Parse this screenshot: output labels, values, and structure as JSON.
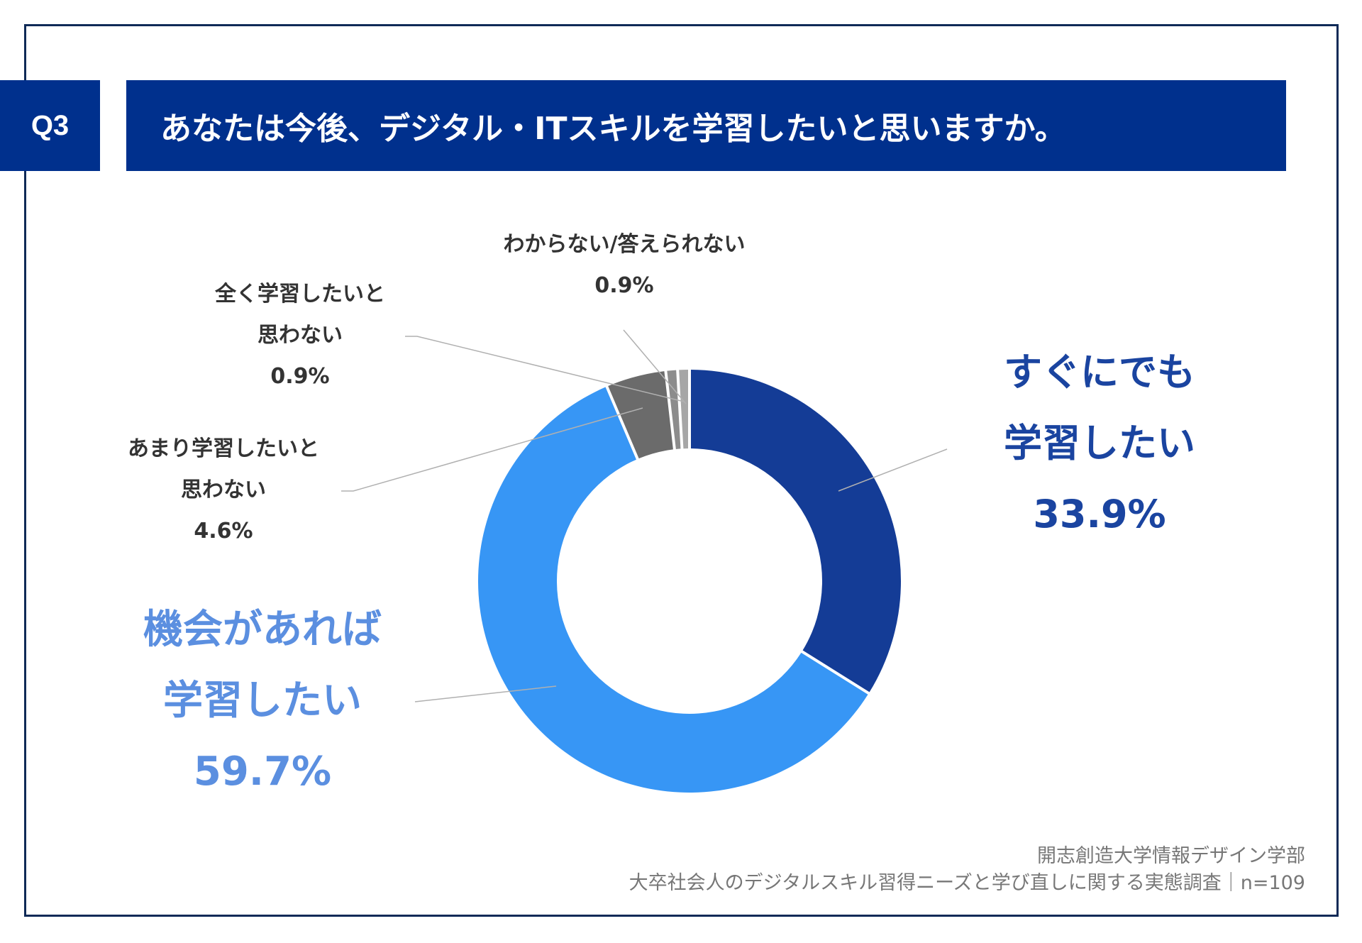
{
  "header": {
    "question_no": "Q3",
    "title": "あなたは今後、デジタル・ITスキルを学習したいと思いますか。"
  },
  "labels": {
    "soon": {
      "line1": "すぐにでも",
      "line2": "学習したい",
      "value": "33.9%"
    },
    "chance": {
      "line1": "機会があれば",
      "line2": "学習したい",
      "value": "59.7%"
    },
    "not_much": {
      "line1": "あまり学習したいと",
      "line2": "思わない",
      "value": "4.6%"
    },
    "not_at_all": {
      "line1": "全く学習したいと",
      "line2": "思わない",
      "value": "0.9%"
    },
    "unknown": {
      "line1": "わからない/答えられない",
      "value": "0.9%"
    }
  },
  "footer": {
    "line1": "開志創造大学情報デザイン学部",
    "line2": "大卒社会人のデジタルスキル習得ニーズと学び直しに関する実態調査｜n=109"
  },
  "colors": {
    "header_bg": "#00308d",
    "frame": "#0f2a57",
    "soon": "#143c96",
    "chance": "#3796f5",
    "not_much": "#6b6b6b",
    "not_at_all": "#8c8c8c",
    "unknown": "#a6a6a6"
  },
  "chart_data": {
    "type": "pie",
    "subtype": "donut",
    "title": "あなたは今後、デジタル・ITスキルを学習したいと思いますか。",
    "categories": [
      "すぐにでも学習したい",
      "機会があれば学習したい",
      "あまり学習したいと思わない",
      "全く学習したいと思わない",
      "わからない/答えられない"
    ],
    "values": [
      33.9,
      59.7,
      4.6,
      0.9,
      0.9
    ],
    "unit": "%",
    "start_angle": "12 o'clock, clockwise",
    "n": 109
  }
}
